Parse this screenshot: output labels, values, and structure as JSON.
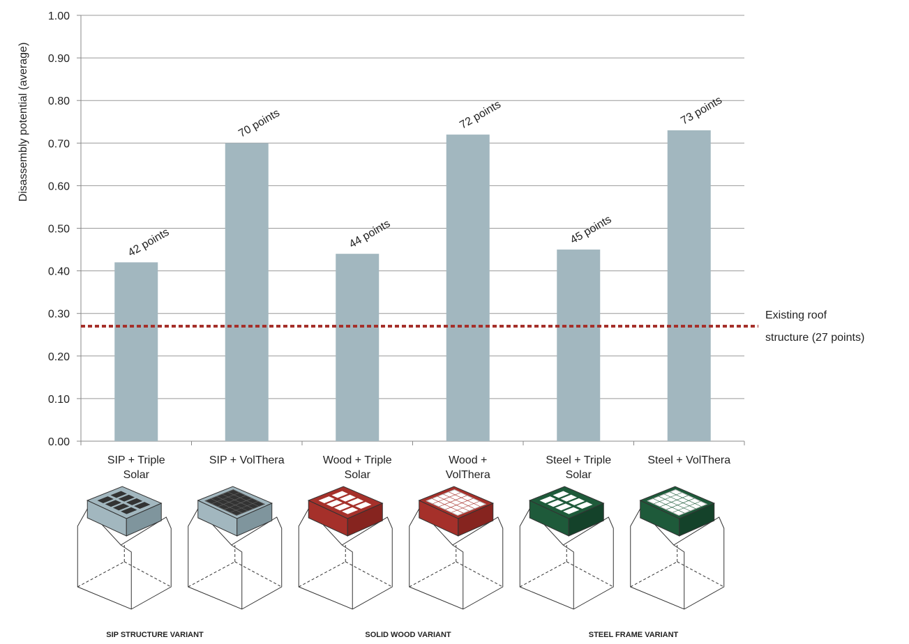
{
  "chart_data": {
    "type": "bar",
    "y_label": "Disassembly potential (average)",
    "categories": [
      "SIP + Triple Solar",
      "SIP + VolThera",
      "Wood + Triple Solar",
      "Wood + VolThera",
      "Steel + Triple Solar",
      "Steel + VolThera"
    ],
    "values": [
      0.42,
      0.7,
      0.44,
      0.72,
      0.45,
      0.73
    ],
    "value_labels": [
      "42 points",
      "70 points",
      "44 points",
      "72 points",
      "45 points",
      "73 points"
    ],
    "color": "#a2b7bf",
    "ylim": [
      0,
      1
    ],
    "yticks": [
      {
        "value": 0,
        "label": "0.00"
      },
      {
        "value": 0.1,
        "label": "0.10"
      },
      {
        "value": 0.2,
        "label": "0.20"
      },
      {
        "value": 0.3,
        "label": "0.30"
      },
      {
        "value": 0.4,
        "label": "0.40"
      },
      {
        "value": 0.5,
        "label": "0.50"
      },
      {
        "value": 0.6,
        "label": "0.60"
      },
      {
        "value": 0.7,
        "label": "0.70"
      },
      {
        "value": 0.8,
        "label": "0.80"
      },
      {
        "value": 0.9,
        "label": "0.90"
      },
      {
        "value": 1,
        "label": "1.00"
      }
    ],
    "grid": true,
    "reference_line": {
      "value": 0.27,
      "color": "#a5302a",
      "label": [
        "Existing roof",
        "structure (27 points)"
      ]
    },
    "variant_captions": [
      "SIP STRUCTURE VARIANT",
      "SOLID WOOD VARIANT",
      "STEEL FRAME VARIANT"
    ]
  }
}
